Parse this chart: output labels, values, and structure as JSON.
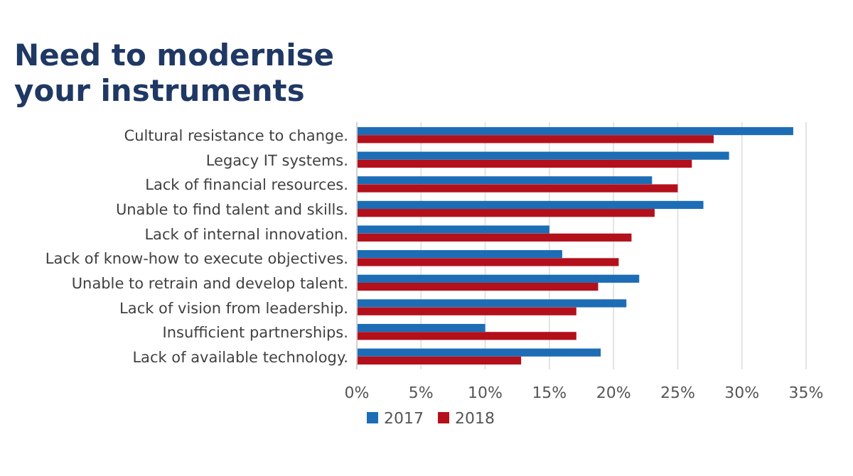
{
  "chart_data": {
    "type": "bar",
    "orientation": "horizontal",
    "title": "Need to modernise your instruments",
    "categories": [
      "Cultural resistance to change.",
      "Legacy IT systems.",
      "Lack of financial resources.",
      "Unable to find talent and skills.",
      "Lack of internal innovation.",
      "Lack of know-how to execute objectives.",
      "Unable to retrain and develop talent.",
      "Lack of vision from leadership.",
      "Insufficient partnerships.",
      "Lack of available technology."
    ],
    "series": [
      {
        "name": "2017",
        "color": "#1c6db5",
        "values": [
          34,
          29,
          23,
          27,
          15,
          16,
          22,
          21,
          10,
          19
        ]
      },
      {
        "name": "2018",
        "color": "#b3101c",
        "values": [
          27.8,
          26.1,
          25,
          23.2,
          21.4,
          20.4,
          18.8,
          17.1,
          17.1,
          12.8
        ]
      }
    ],
    "xlim": [
      0,
      35
    ],
    "xticks": [
      {
        "value": 0,
        "label": "0%"
      },
      {
        "value": 5,
        "label": "5%"
      },
      {
        "value": 10,
        "label": "10%"
      },
      {
        "value": 15,
        "label": "15%"
      },
      {
        "value": 20,
        "label": "20%"
      },
      {
        "value": 25,
        "label": "25%"
      },
      {
        "value": 30,
        "label": "30%"
      },
      {
        "value": 35,
        "label": "35%"
      }
    ],
    "grid": "x",
    "legend": "bottom"
  }
}
